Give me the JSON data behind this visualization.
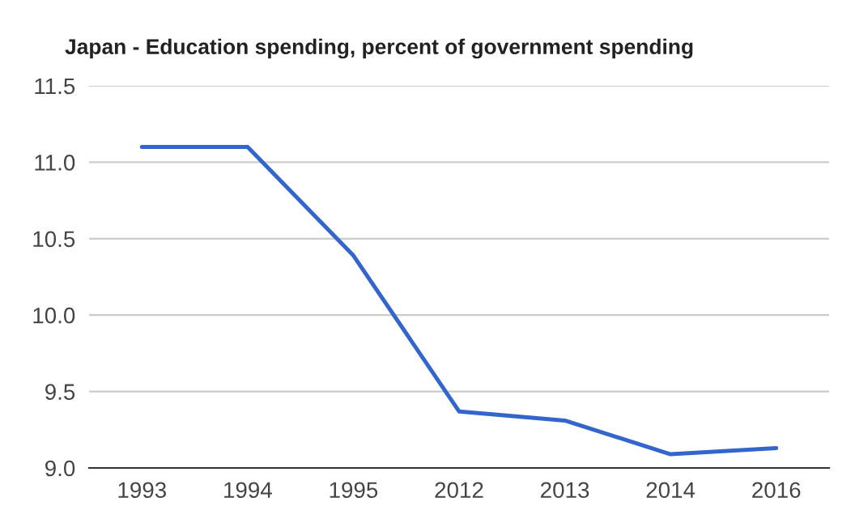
{
  "chart_data": {
    "type": "line",
    "title": "Japan - Education spending, percent of government spending",
    "categories": [
      "1993",
      "1994",
      "1995",
      "2012",
      "2013",
      "2014",
      "2016"
    ],
    "series": [
      {
        "color": "#3366cc",
        "values": [
          11.1,
          11.1,
          10.39,
          9.37,
          9.31,
          9.09,
          9.13
        ]
      }
    ],
    "ylim": [
      9.0,
      11.5
    ],
    "yticks": [
      {
        "value": 9,
        "label": "9.0"
      },
      9.5,
      {
        "value": 10,
        "label": "10.0"
      },
      10.5,
      {
        "value": 11,
        "label": "11.0"
      },
      11.5
    ],
    "grid": "y",
    "marker": "none",
    "line_style": "solid"
  }
}
